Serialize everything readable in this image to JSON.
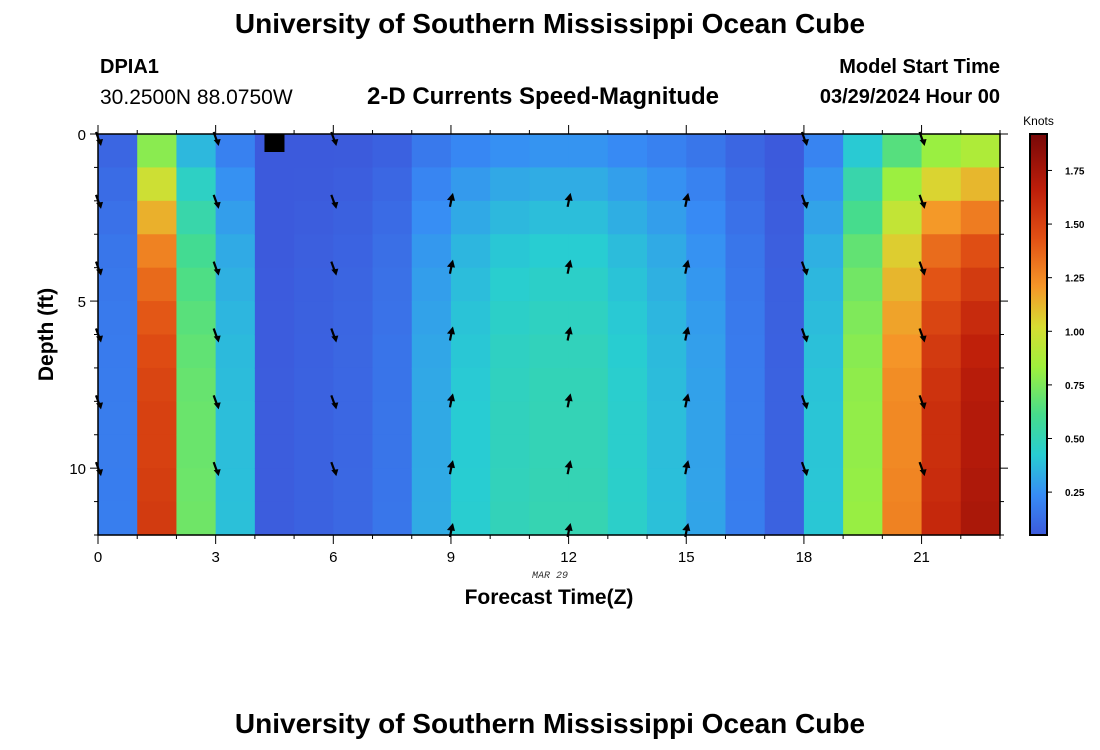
{
  "header": {
    "title": "University of Southern Mississippi Ocean Cube",
    "station_id": "DPIA1",
    "station_coords": "30.2500N  88.0750W",
    "plot_title": "2-D Currents Speed-Magnitude",
    "start_label": "Model Start Time",
    "start_value": "03/29/2024 Hour 00"
  },
  "footer": {
    "title": "University of Southern Mississippi Ocean Cube"
  },
  "chart_data": {
    "type": "heatmap",
    "title": "2-D Currents Speed-Magnitude",
    "xlabel": "Forecast Time(Z)",
    "ylabel": "Depth (ft)",
    "date_label": "MAR 29",
    "xlim": [
      0,
      23
    ],
    "ylim": [
      0,
      12
    ],
    "x_ticks": [
      "0",
      "3",
      "6",
      "9",
      "12",
      "15",
      "18",
      "21"
    ],
    "y_ticks": [
      "0",
      "5",
      "10"
    ],
    "colorbar": {
      "label": "Knots",
      "range": [
        0.05,
        1.92
      ],
      "ticks": [
        "0.25",
        "0.50",
        "0.75",
        "1.00",
        "1.25",
        "1.50",
        "1.75"
      ]
    },
    "hours": [
      0,
      1,
      2,
      3,
      4,
      5,
      6,
      7,
      8,
      9,
      10,
      11,
      12,
      13,
      14,
      15,
      16,
      17,
      18,
      19,
      20,
      21,
      22
    ],
    "depth_levels": [
      0,
      1,
      2,
      3,
      4,
      5,
      6,
      7,
      8,
      9,
      10,
      11
    ],
    "hour_profile_knots": [
      0.18,
      1.5,
      0.7,
      0.38,
      0.06,
      0.08,
      0.1,
      0.15,
      0.32,
      0.42,
      0.48,
      0.5,
      0.5,
      0.44,
      0.38,
      0.3,
      0.18,
      0.08,
      0.4,
      0.8,
      1.25,
      1.58,
      1.7
    ],
    "depth_factor": [
      0.52,
      0.66,
      0.76,
      0.85,
      0.9,
      0.94,
      0.97,
      0.99,
      1.0,
      1.0,
      1.01,
      1.02
    ],
    "missing_cell": {
      "hour": 4.5,
      "depth": 0
    },
    "arrows": [
      {
        "hour": 0,
        "direction": "down",
        "depths": [
          0,
          2,
          4,
          6,
          8,
          10
        ]
      },
      {
        "hour": 3,
        "direction": "down",
        "depths": [
          0,
          2,
          4,
          6,
          8,
          10
        ]
      },
      {
        "hour": 6,
        "direction": "down",
        "depths": [
          0,
          2,
          4,
          6,
          8,
          10
        ]
      },
      {
        "hour": 9,
        "direction": "up",
        "depths": [
          2,
          4,
          6,
          8,
          10,
          12
        ]
      },
      {
        "hour": 12,
        "direction": "up",
        "depths": [
          2,
          4,
          6,
          8,
          10,
          12
        ]
      },
      {
        "hour": 15,
        "direction": "up",
        "depths": [
          2,
          4,
          6,
          8,
          10,
          12
        ]
      },
      {
        "hour": 18,
        "direction": "down",
        "depths": [
          0,
          2,
          4,
          6,
          8,
          10
        ]
      },
      {
        "hour": 21,
        "direction": "down",
        "depths": [
          0,
          2,
          4,
          6,
          8,
          10
        ]
      }
    ]
  }
}
